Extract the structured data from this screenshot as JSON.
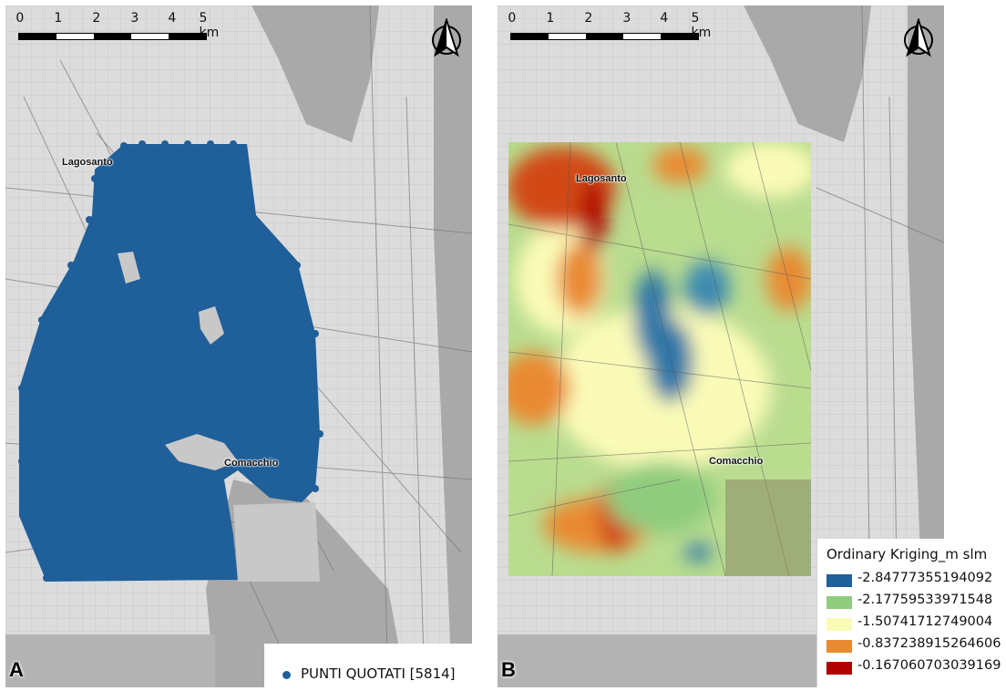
{
  "scale_bar": {
    "labels": [
      "0",
      "1",
      "2",
      "3",
      "4",
      "5 km"
    ]
  },
  "colors": {
    "points": "#1f5f9a",
    "background_map": "#d9d9d9",
    "sea_lagoon": "#a9a9a9"
  },
  "icons": {
    "north_arrow": "north-arrow-icon"
  },
  "panel_a": {
    "letter": "A",
    "places": {
      "lagosanto": "Lagosanto",
      "comacchio": "Comacchio"
    },
    "legend": {
      "label": "PUNTI QUOTATI [5814]"
    }
  },
  "panel_b": {
    "letter": "B",
    "places": {
      "lagosanto": "Lagosanto",
      "comacchio": "Comacchio"
    },
    "legend": {
      "title": "Ordinary Kriging_m slm",
      "classes": [
        {
          "value": "-2.84777355194092",
          "color": "#1f5f9a"
        },
        {
          "value": "-2.17759533971548",
          "color": "#8fcc7e"
        },
        {
          "value": "-1.50741712749004",
          "color": "#fbfbb8"
        },
        {
          "value": "-0.837238915264606",
          "color": "#e98a32"
        },
        {
          "value": "-0.167060703039169",
          "color": "#b10000"
        }
      ]
    }
  }
}
